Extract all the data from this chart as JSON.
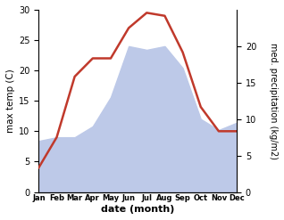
{
  "months": [
    "Jan",
    "Feb",
    "Mar",
    "Apr",
    "May",
    "Jun",
    "Jul",
    "Aug",
    "Sep",
    "Oct",
    "Nov",
    "Dec"
  ],
  "temperature": [
    4.0,
    9.0,
    19.0,
    22.0,
    22.0,
    27.0,
    29.5,
    29.0,
    23.0,
    14.0,
    10.0,
    10.0
  ],
  "precipitation": [
    7.0,
    7.5,
    7.5,
    9.0,
    13.0,
    20.0,
    19.5,
    20.0,
    17.0,
    10.0,
    8.5,
    9.5
  ],
  "temp_color": "#c0392b",
  "precip_fill_color": "#bdc9e8",
  "temp_ylim": [
    0,
    30
  ],
  "precip_ylim": [
    0,
    25
  ],
  "right_yticks": [
    0,
    5,
    10,
    15,
    20
  ],
  "left_yticks": [
    0,
    5,
    10,
    15,
    20,
    25,
    30
  ],
  "ylabel_left": "max temp (C)",
  "ylabel_right": "med. precipitation (kg/m2)",
  "xlabel": "date (month)",
  "fig_width": 3.18,
  "fig_height": 2.47,
  "dpi": 100,
  "background_color": "#ffffff"
}
